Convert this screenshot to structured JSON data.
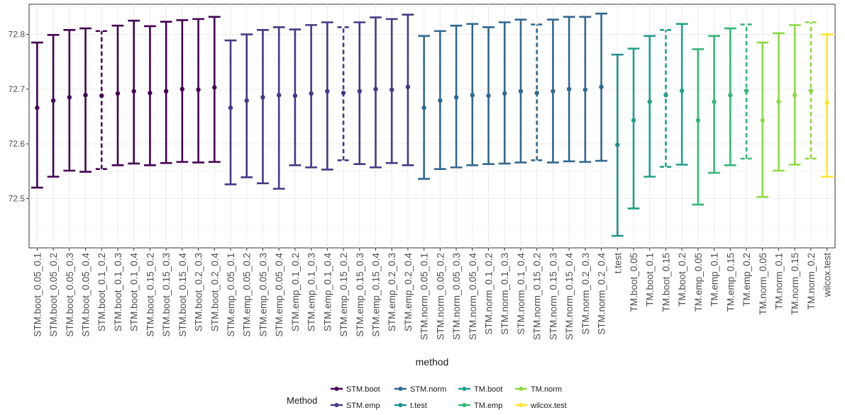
{
  "chart_data": {
    "type": "errorbar",
    "xlabel": "method",
    "ylabel": "",
    "ylim": [
      72.41,
      72.855
    ],
    "yticks": [
      72.5,
      72.6,
      72.7,
      72.8
    ],
    "ytick_labels": [
      "72.5",
      "72.6",
      "72.7",
      "72.8"
    ],
    "grid": true,
    "legend_position": "bottom",
    "legend_title": "Method",
    "legend": [
      {
        "name": "STM.boot",
        "color": "#440154"
      },
      {
        "name": "STM.emp",
        "color": "#443A83"
      },
      {
        "name": "STM.norm",
        "color": "#31688E"
      },
      {
        "name": "t.test",
        "color": "#21908C"
      },
      {
        "name": "TM.boot",
        "color": "#1FA187"
      },
      {
        "name": "TM.emp",
        "color": "#35B779"
      },
      {
        "name": "TM.norm",
        "color": "#90D743"
      },
      {
        "name": "wilcox.test",
        "color": "#FDE725"
      }
    ],
    "points": [
      {
        "label": "STM.boot_0.05_0.1",
        "method": "STM.boot",
        "est": 72.666,
        "lo": 72.52,
        "hi": 72.785,
        "dashed": false
      },
      {
        "label": "STM.boot_0.05_0.2",
        "method": "STM.boot",
        "est": 72.679,
        "lo": 72.54,
        "hi": 72.799,
        "dashed": false
      },
      {
        "label": "STM.boot_0.05_0.3",
        "method": "STM.boot",
        "est": 72.685,
        "lo": 72.551,
        "hi": 72.808,
        "dashed": false
      },
      {
        "label": "STM.boot_0.05_0.4",
        "method": "STM.boot",
        "est": 72.689,
        "lo": 72.549,
        "hi": 72.811,
        "dashed": false
      },
      {
        "label": "STM.boot_0.1_0.2",
        "method": "STM.boot",
        "est": 72.688,
        "lo": 72.554,
        "hi": 72.806,
        "dashed": true
      },
      {
        "label": "STM.boot_0.1_0.3",
        "method": "STM.boot",
        "est": 72.692,
        "lo": 72.561,
        "hi": 72.816,
        "dashed": false
      },
      {
        "label": "STM.boot_0.1_0.4",
        "method": "STM.boot",
        "est": 72.696,
        "lo": 72.564,
        "hi": 72.825,
        "dashed": false
      },
      {
        "label": "STM.boot_0.15_0.2",
        "method": "STM.boot",
        "est": 72.693,
        "lo": 72.561,
        "hi": 72.815,
        "dashed": false
      },
      {
        "label": "STM.boot_0.15_0.3",
        "method": "STM.boot",
        "est": 72.696,
        "lo": 72.565,
        "hi": 72.823,
        "dashed": false
      },
      {
        "label": "STM.boot_0.15_0.4",
        "method": "STM.boot",
        "est": 72.7,
        "lo": 72.567,
        "hi": 72.826,
        "dashed": false
      },
      {
        "label": "STM.boot_0.2_0.3",
        "method": "STM.boot",
        "est": 72.699,
        "lo": 72.566,
        "hi": 72.828,
        "dashed": false
      },
      {
        "label": "STM.boot_0.2_0.4",
        "method": "STM.boot",
        "est": 72.703,
        "lo": 72.567,
        "hi": 72.832,
        "dashed": false
      },
      {
        "label": "STM.emp_0.05_0.1",
        "method": "STM.emp",
        "est": 72.666,
        "lo": 72.526,
        "hi": 72.789,
        "dashed": false
      },
      {
        "label": "STM.emp_0.05_0.2",
        "method": "STM.emp",
        "est": 72.679,
        "lo": 72.539,
        "hi": 72.8,
        "dashed": false
      },
      {
        "label": "STM.emp_0.05_0.3",
        "method": "STM.emp",
        "est": 72.685,
        "lo": 72.528,
        "hi": 72.808,
        "dashed": false
      },
      {
        "label": "STM.emp_0.05_0.4",
        "method": "STM.emp",
        "est": 72.689,
        "lo": 72.518,
        "hi": 72.813,
        "dashed": false
      },
      {
        "label": "STM.emp_0.1_0.2",
        "method": "STM.emp",
        "est": 72.688,
        "lo": 72.561,
        "hi": 72.809,
        "dashed": false
      },
      {
        "label": "STM.emp_0.1_0.3",
        "method": "STM.emp",
        "est": 72.692,
        "lo": 72.557,
        "hi": 72.817,
        "dashed": false
      },
      {
        "label": "STM.emp_0.1_0.4",
        "method": "STM.emp",
        "est": 72.696,
        "lo": 72.553,
        "hi": 72.822,
        "dashed": false
      },
      {
        "label": "STM.emp_0.15_0.2",
        "method": "STM.emp",
        "est": 72.693,
        "lo": 72.57,
        "hi": 72.813,
        "dashed": true
      },
      {
        "label": "STM.emp_0.15_0.3",
        "method": "STM.emp",
        "est": 72.696,
        "lo": 72.563,
        "hi": 72.822,
        "dashed": false
      },
      {
        "label": "STM.emp_0.15_0.4",
        "method": "STM.emp",
        "est": 72.7,
        "lo": 72.557,
        "hi": 72.831,
        "dashed": false
      },
      {
        "label": "STM.emp_0.2_0.3",
        "method": "STM.emp",
        "est": 72.699,
        "lo": 72.565,
        "hi": 72.828,
        "dashed": false
      },
      {
        "label": "STM.emp_0.2_0.4",
        "method": "STM.emp",
        "est": 72.704,
        "lo": 72.561,
        "hi": 72.836,
        "dashed": false
      },
      {
        "label": "STM.norm_0.05_0.1",
        "method": "STM.norm",
        "est": 72.666,
        "lo": 72.536,
        "hi": 72.797,
        "dashed": false
      },
      {
        "label": "STM.norm_0.05_0.2",
        "method": "STM.norm",
        "est": 72.679,
        "lo": 72.554,
        "hi": 72.806,
        "dashed": false
      },
      {
        "label": "STM.norm_0.05_0.3",
        "method": "STM.norm",
        "est": 72.685,
        "lo": 72.557,
        "hi": 72.816,
        "dashed": false
      },
      {
        "label": "STM.norm_0.05_0.4",
        "method": "STM.norm",
        "est": 72.689,
        "lo": 72.561,
        "hi": 72.819,
        "dashed": false
      },
      {
        "label": "STM.norm_0.1_0.2",
        "method": "STM.norm",
        "est": 72.688,
        "lo": 72.563,
        "hi": 72.813,
        "dashed": false
      },
      {
        "label": "STM.norm_0.1_0.3",
        "method": "STM.norm",
        "est": 72.692,
        "lo": 72.564,
        "hi": 72.822,
        "dashed": false
      },
      {
        "label": "STM.norm_0.1_0.4",
        "method": "STM.norm",
        "est": 72.696,
        "lo": 72.566,
        "hi": 72.827,
        "dashed": false
      },
      {
        "label": "STM.norm_0.15_0.2",
        "method": "STM.norm",
        "est": 72.693,
        "lo": 72.57,
        "hi": 72.818,
        "dashed": true
      },
      {
        "label": "STM.norm_0.15_0.3",
        "method": "STM.norm",
        "est": 72.696,
        "lo": 72.566,
        "hi": 72.827,
        "dashed": false
      },
      {
        "label": "STM.norm_0.15_0.4",
        "method": "STM.norm",
        "est": 72.7,
        "lo": 72.568,
        "hi": 72.832,
        "dashed": false
      },
      {
        "label": "STM.norm_0.2_0.3",
        "method": "STM.norm",
        "est": 72.699,
        "lo": 72.567,
        "hi": 72.832,
        "dashed": false
      },
      {
        "label": "STM.norm_0.2_0.4",
        "method": "STM.norm",
        "est": 72.704,
        "lo": 72.569,
        "hi": 72.838,
        "dashed": false
      },
      {
        "label": "t.test",
        "method": "t.test",
        "est": 72.598,
        "lo": 72.432,
        "hi": 72.763,
        "dashed": false
      },
      {
        "label": "TM.boot_0.05",
        "method": "TM.boot",
        "est": 72.643,
        "lo": 72.482,
        "hi": 72.774,
        "dashed": false
      },
      {
        "label": "TM.boot_0.1",
        "method": "TM.boot",
        "est": 72.677,
        "lo": 72.54,
        "hi": 72.797,
        "dashed": false
      },
      {
        "label": "TM.boot_0.15",
        "method": "TM.boot",
        "est": 72.689,
        "lo": 72.558,
        "hi": 72.808,
        "dashed": true
      },
      {
        "label": "TM.boot_0.2",
        "method": "TM.boot",
        "est": 72.697,
        "lo": 72.562,
        "hi": 72.819,
        "dashed": false
      },
      {
        "label": "TM.emp_0.05",
        "method": "TM.emp",
        "est": 72.643,
        "lo": 72.489,
        "hi": 72.773,
        "dashed": false
      },
      {
        "label": "TM.emp_0.1",
        "method": "TM.emp",
        "est": 72.677,
        "lo": 72.547,
        "hi": 72.797,
        "dashed": false
      },
      {
        "label": "TM.emp_0.15",
        "method": "TM.emp",
        "est": 72.689,
        "lo": 72.561,
        "hi": 72.811,
        "dashed": false
      },
      {
        "label": "TM.emp_0.2",
        "method": "TM.emp",
        "est": 72.697,
        "lo": 72.573,
        "hi": 72.818,
        "dashed": true
      },
      {
        "label": "TM.norm_0.05",
        "method": "TM.norm",
        "est": 72.643,
        "lo": 72.503,
        "hi": 72.785,
        "dashed": false
      },
      {
        "label": "TM.norm_0.1",
        "method": "TM.norm",
        "est": 72.677,
        "lo": 72.551,
        "hi": 72.802,
        "dashed": false
      },
      {
        "label": "TM.norm_0.15",
        "method": "TM.norm",
        "est": 72.689,
        "lo": 72.562,
        "hi": 72.817,
        "dashed": false
      },
      {
        "label": "TM.norm_0.2",
        "method": "TM.norm",
        "est": 72.697,
        "lo": 72.573,
        "hi": 72.822,
        "dashed": true
      },
      {
        "label": "wilcox.test",
        "method": "wilcox.test",
        "est": 72.675,
        "lo": 72.54,
        "hi": 72.8,
        "dashed": false
      }
    ]
  }
}
